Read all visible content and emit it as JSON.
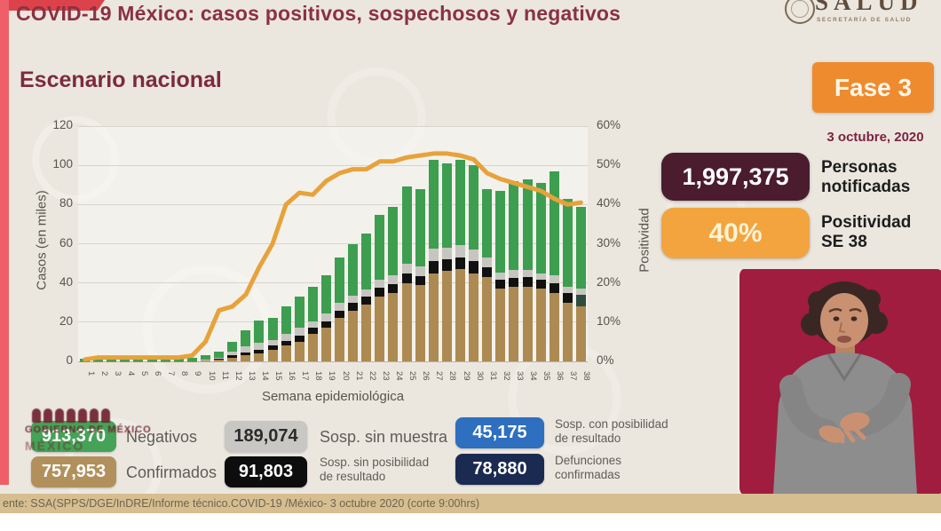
{
  "header": {
    "title": "COVID-19 México: casos positivos, sospechosos y negativos",
    "logo": {
      "name": "SALUD",
      "subtitle": "SECRETARÍA DE SALUD"
    }
  },
  "section_title": "Escenario nacional",
  "phase_badge": {
    "label": "Fase 3",
    "color": "#ee8b2e"
  },
  "date": "3 octubre, 2020",
  "stats": [
    {
      "value": "1,997,375",
      "label": "Personas notificadas",
      "color": "#4a1c2e"
    },
    {
      "value": "40%",
      "label": "Positividad SE 38",
      "color": "#f3a43e"
    }
  ],
  "chart_data": {
    "type": "bar",
    "stacked": true,
    "x": [
      1,
      2,
      3,
      4,
      5,
      6,
      7,
      8,
      9,
      10,
      11,
      12,
      13,
      14,
      15,
      16,
      17,
      18,
      19,
      20,
      21,
      22,
      23,
      24,
      25,
      26,
      27,
      28,
      29,
      30,
      31,
      32,
      33,
      34,
      35,
      36,
      37,
      38
    ],
    "xlabel": "Semana epidemiológica",
    "ylabel_left": "Casos (en miles)",
    "ylabel_right": "Positividad",
    "ylim_left": [
      0,
      120
    ],
    "ylim_right": [
      0,
      60
    ],
    "left_ticks": [
      0,
      20,
      40,
      60,
      80,
      100,
      120
    ],
    "right_ticks": [
      "0%",
      "10%",
      "20%",
      "30%",
      "40%",
      "50%",
      "60%"
    ],
    "grid": true,
    "series": [
      {
        "name": "Confirmados",
        "color": "#ad8a52",
        "values": [
          0.1,
          0.2,
          0.2,
          0.2,
          0.2,
          0.2,
          0.2,
          0.2,
          0.2,
          0.5,
          1,
          2,
          3,
          4,
          6,
          8,
          10,
          14,
          17,
          22,
          26,
          29,
          33,
          35,
          40,
          39,
          45,
          46,
          47,
          45,
          43,
          37,
          38,
          38,
          37,
          35,
          30,
          28
        ]
      },
      {
        "name": "Sosp. sin posibilidad de resultado",
        "color": "#111111",
        "values": [
          0,
          0,
          0,
          0,
          0,
          0,
          0,
          0,
          0,
          0.2,
          0.3,
          1,
          1.5,
          2,
          2,
          2.5,
          3,
          3,
          3.5,
          4,
          4,
          4,
          4.5,
          4.5,
          5,
          4.5,
          6,
          6,
          6,
          6,
          5,
          4.5,
          4.5,
          5,
          4.5,
          5,
          5,
          6
        ]
      },
      {
        "name": "Sosp. sin muestra",
        "color": "#c7c5c0",
        "values": [
          0,
          0,
          0,
          0,
          0,
          0,
          0,
          0,
          0,
          0.3,
          0.7,
          2,
          3,
          3.5,
          3,
          3.5,
          4,
          3.5,
          4,
          4,
          3.5,
          3.5,
          4,
          4.5,
          5,
          5,
          6.5,
          6,
          6.5,
          6,
          5,
          4,
          4,
          3.5,
          3.5,
          4,
          3,
          3
        ]
      },
      {
        "name": "Negativos",
        "color": "#3d9e50",
        "values": [
          1.4,
          1.8,
          1.8,
          1.8,
          1.8,
          1.8,
          1.8,
          1.8,
          1.8,
          2,
          3,
          5,
          8.5,
          11.5,
          11,
          14,
          16,
          17.5,
          19.5,
          23,
          26.5,
          28.5,
          33,
          35,
          39,
          39.5,
          45.5,
          43,
          43.5,
          43,
          35,
          41.5,
          45.5,
          46.5,
          46,
          53,
          45,
          42
        ]
      }
    ],
    "segment_override": {
      "index": 37,
      "series": 1,
      "color": "#2f4c3f"
    },
    "line": {
      "name": "Positividad (%)",
      "color": "#e7a23b",
      "values": [
        0.5,
        1,
        1,
        1,
        1,
        1,
        1,
        1,
        1.5,
        5,
        13,
        14,
        17,
        24,
        30,
        40,
        43,
        42.5,
        46,
        48,
        49,
        49,
        51,
        51,
        52,
        52.5,
        53,
        53,
        52.5,
        51.5,
        48,
        46.5,
        45.5,
        44.5,
        43.5,
        41.5,
        40,
        40.5
      ]
    }
  },
  "legend": [
    {
      "value": "913,370",
      "label": "Negativos",
      "color": "#44a356",
      "text_color": "#ffffff"
    },
    {
      "value": "757,953",
      "label": "Confirmados",
      "color": "#b2905c",
      "text_color": "#ffffff"
    },
    {
      "value": "189,074",
      "label": "Sosp. sin muestra",
      "color": "#c9c7c3",
      "text_color": "#2b2b2b"
    },
    {
      "value": "91,803",
      "label": "Sosp. sin posibilidad de resultado",
      "color": "#0d0d0d",
      "text_color": "#ffffff"
    },
    {
      "value": "45,175",
      "label": "Sosp. con posibilidad de resultado",
      "color": "#2e6fbf",
      "text_color": "#ffffff"
    },
    {
      "value": "78,880",
      "label": "Defunciones confirmadas",
      "color": "#1b2a50",
      "text_color": "#ffffff"
    }
  ],
  "watermark": {
    "text": "GOBIERNO DE MÉXICO",
    "text2": "MÉXICO"
  },
  "footer": {
    "source": "ente: SSA(SPPS/DGE/InDRE/Informe técnico.COVID-19 /México- 3 octubre 2020 (corte 9:00hrs)"
  }
}
